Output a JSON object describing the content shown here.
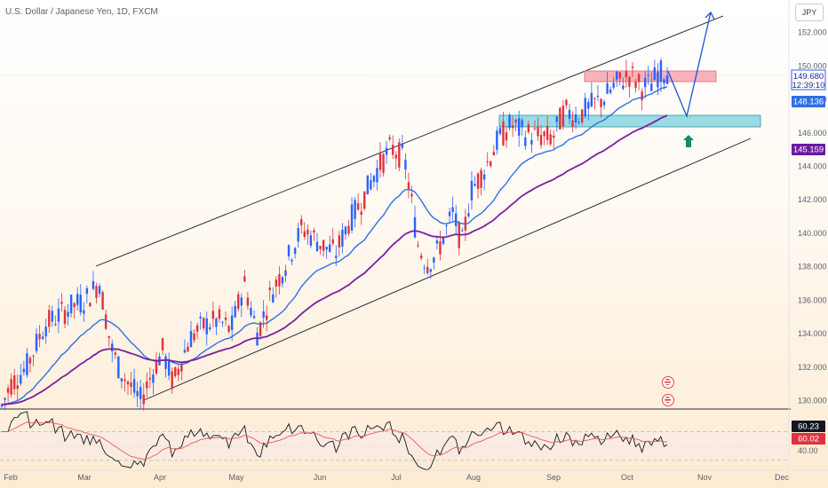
{
  "title": "U.S. Dollar / Japanese Yen, 1D, FXCM",
  "currency_button": "JPY",
  "price_axis_ticks": [
    "152.000",
    "150.000",
    "148.000",
    "146.000",
    "144.000",
    "142.000",
    "140.000",
    "138.000",
    "136.000",
    "134.000",
    "132.000",
    "130.000"
  ],
  "rsi_axis_ticks": [
    "40.00"
  ],
  "time_axis_ticks": [
    "Feb",
    "Mar",
    "Apr",
    "May",
    "Jun",
    "Jul",
    "Aug",
    "Sep",
    "Oct",
    "Nov",
    "Dec"
  ],
  "price_tags": {
    "last_price": "149.680",
    "countdown": "12:39:10",
    "ema_fast": "148.136",
    "ema_slow": "145.159",
    "rsi": "60.23",
    "rsi_ma": "60.02"
  },
  "colors": {
    "up": "#2962ff",
    "down": "#e0323e",
    "ema_fast": "#2f6fe4",
    "ema_slow": "#7b1fa2",
    "rsi_line": "#131722",
    "rsi_ma": "#e65a5a",
    "resistance_zone": "#f4a6ae",
    "support_zone": "#8fd8e2",
    "forecast_arrow": "#1f4fd6",
    "up_arrow": "#138a6b"
  },
  "chart_data": {
    "type": "candlestick",
    "symbol": "USDJPY",
    "interval": "1D",
    "x": [
      "2023-01-30",
      "2023-02-15",
      "2023-03-01",
      "2023-03-10",
      "2023-03-24",
      "2023-04-10",
      "2023-04-25",
      "2023-05-02",
      "2023-05-12",
      "2023-05-19",
      "2023-06-01",
      "2023-06-15",
      "2023-06-30",
      "2023-07-14",
      "2023-07-28",
      "2023-08-11",
      "2023-08-24",
      "2023-09-01",
      "2023-09-15",
      "2023-09-29",
      "2023-10-11"
    ],
    "close": [
      130.2,
      134.8,
      136.2,
      136.6,
      130.6,
      133.6,
      134.1,
      136.3,
      135.1,
      138.3,
      139.9,
      141.3,
      144.6,
      138.0,
      140.4,
      144.6,
      146.3,
      146.2,
      147.8,
      149.3,
      149.68
    ],
    "ema_fast_last": 148.136,
    "ema_slow_last": 145.159,
    "rsi_last": 60.23,
    "rsi_ma_last": 60.02,
    "ylim": [
      129.5,
      153.2
    ],
    "annotations": {
      "resistance_zone": [
        149.6,
        150.2
      ],
      "support_zone": [
        146.4,
        147.0
      ],
      "forecast": [
        149.68,
        147.0,
        153.2
      ]
    }
  }
}
